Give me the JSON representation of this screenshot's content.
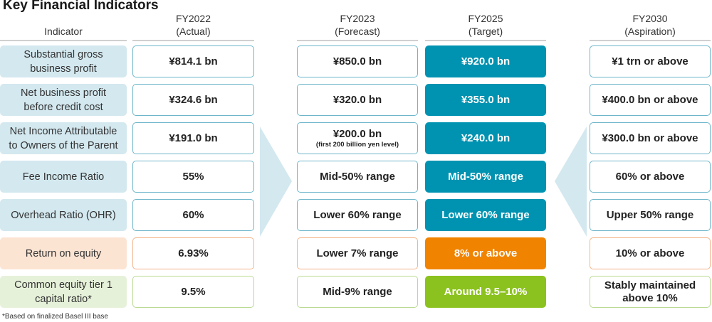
{
  "title": "Key Financial Indicators",
  "headers": {
    "indicator": "Indicator",
    "fy2022": [
      "FY2022",
      "(Actual)"
    ],
    "fy2023": [
      "FY2023",
      "(Forecast)"
    ],
    "fy2025": [
      "FY2025",
      "(Target)"
    ],
    "fy2030": [
      "FY2030",
      "(Aspiration)"
    ]
  },
  "colors": {
    "teal": "#0093b1",
    "orange": "#f08300",
    "green": "#8cc21f",
    "light_blue": "#d3e8ef"
  },
  "rows": [
    {
      "theme": "blue",
      "indicator": [
        "Substantial gross",
        "business profit"
      ],
      "fy2022": "¥814.1 bn",
      "fy2023": "¥850.0 bn",
      "fy2025": "¥920.0 bn",
      "fy2030": "¥1 trn or above"
    },
    {
      "theme": "blue",
      "indicator": [
        "Net business profit",
        "before credit cost"
      ],
      "fy2022": "¥324.6 bn",
      "fy2023": "¥320.0 bn",
      "fy2025": "¥355.0 bn",
      "fy2030": "¥400.0 bn or above"
    },
    {
      "theme": "blue",
      "indicator": [
        "Net Income Attributable",
        "to Owners of the Parent"
      ],
      "fy2022": "¥191.0 bn",
      "fy2023": "¥200.0 bn",
      "fy2023_note": "(first 200 billion yen level)",
      "fy2025": "¥240.0 bn",
      "fy2030": "¥300.0 bn or above"
    },
    {
      "theme": "blue",
      "indicator": [
        "Fee Income Ratio"
      ],
      "fy2022": "55%",
      "fy2023": "Mid-50% range",
      "fy2025": "Mid-50% range",
      "fy2030": "60% or above"
    },
    {
      "theme": "blue",
      "indicator": [
        "Overhead Ratio (OHR)"
      ],
      "fy2022": "60%",
      "fy2023": "Lower 60% range",
      "fy2025": "Lower 60% range",
      "fy2030": "Upper 50% range"
    },
    {
      "theme": "orange",
      "indicator": [
        "Return on equity"
      ],
      "fy2022": "6.93%",
      "fy2023": "Lower 7% range",
      "fy2025": "8% or above",
      "fy2030": "10% or above"
    },
    {
      "theme": "green",
      "indicator": [
        "Common equity tier 1",
        "capital ratio*"
      ],
      "fy2022": "9.5%",
      "fy2023": "Mid-9% range",
      "fy2025": "Around 9.5–10%",
      "fy2030": [
        "Stably maintained",
        "above 10%"
      ]
    }
  ],
  "footnote": "*Based on finalized Basel III base"
}
